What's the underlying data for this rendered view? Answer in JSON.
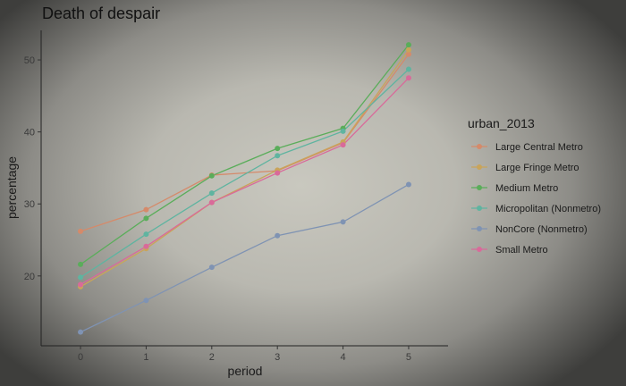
{
  "chart_data": {
    "type": "line",
    "title": "Death of despair",
    "xlabel": "period",
    "ylabel": "percentage",
    "x": [
      0,
      1,
      2,
      3,
      4,
      5
    ],
    "xlim": [
      -0.6,
      5.6
    ],
    "ylim": [
      10.3,
      54.1
    ],
    "yticks": [
      20,
      30,
      40,
      50
    ],
    "grid": false,
    "legend_title": "urban_2013",
    "legend_position": "right",
    "series": [
      {
        "name": "Large Central Metro",
        "color": "#d58a6a",
        "values": [
          26.2,
          29.2,
          34.0,
          34.6,
          38.5,
          50.8
        ]
      },
      {
        "name": "Large Fringe Metro",
        "color": "#c9a45a",
        "values": [
          18.5,
          23.8,
          30.2,
          34.7,
          38.6,
          51.4
        ]
      },
      {
        "name": "Medium Metro",
        "color": "#5aad5a",
        "values": [
          21.6,
          28.0,
          33.9,
          37.7,
          40.5,
          52.1
        ]
      },
      {
        "name": "Micropolitan (Nonmetro)",
        "color": "#5fb4a0",
        "values": [
          19.8,
          25.8,
          31.5,
          36.7,
          40.1,
          48.7
        ]
      },
      {
        "name": "NonCore (Nonmetro)",
        "color": "#7f93b3",
        "values": [
          12.2,
          16.6,
          21.2,
          25.6,
          27.5,
          32.7
        ]
      },
      {
        "name": "Small Metro",
        "color": "#d96a9a",
        "values": [
          18.8,
          24.1,
          30.2,
          34.3,
          38.2,
          47.5
        ]
      }
    ]
  }
}
